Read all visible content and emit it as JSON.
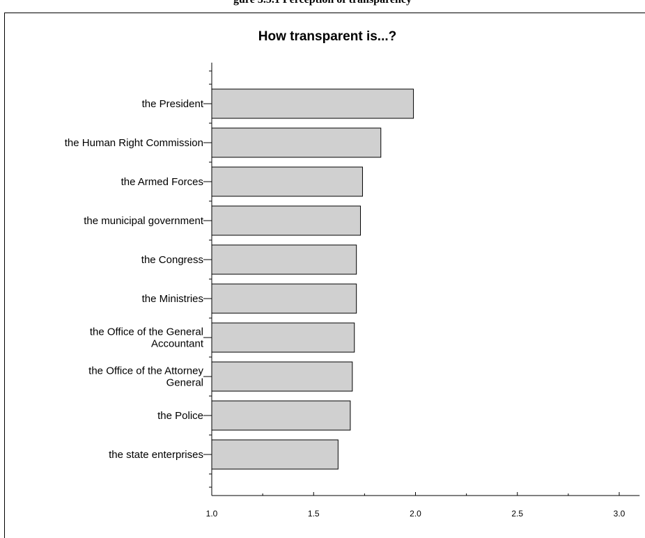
{
  "page_heading": "gure 3.5.1 Perception of transparency",
  "chart_data": {
    "type": "bar",
    "orientation": "horizontal",
    "title": "How transparent is...?",
    "xlabel": "",
    "ylabel": "",
    "categories": [
      "the President",
      "the Human Right Commission",
      "the Armed Forces",
      "the municipal government",
      "the Congress",
      "the Ministries",
      "the Office of the General Accountant",
      "the Office of the Attorney General",
      "the Police",
      "the state enterprises"
    ],
    "category_lines": [
      [
        "the President"
      ],
      [
        "the Human Right Commission"
      ],
      [
        "the Armed Forces"
      ],
      [
        "the municipal government"
      ],
      [
        "the Congress"
      ],
      [
        "the Ministries"
      ],
      [
        "the Office of the General",
        "Accountant"
      ],
      [
        "the Office of the Attorney",
        "General"
      ],
      [
        "the Police"
      ],
      [
        "the state enterprises"
      ]
    ],
    "values": [
      1.99,
      1.83,
      1.74,
      1.73,
      1.71,
      1.71,
      1.7,
      1.69,
      1.68,
      1.62
    ],
    "xlim": [
      1.0,
      3.1
    ],
    "xticks": [
      1.0,
      1.5,
      2.0,
      2.5,
      3.0
    ],
    "xtick_labels": [
      "1.0",
      "1.5",
      "2.0",
      "2.5",
      "3.0"
    ],
    "bar_color": "#d0d0d0",
    "bar_edge_color": "#000000",
    "grid": false,
    "legend": "none"
  }
}
